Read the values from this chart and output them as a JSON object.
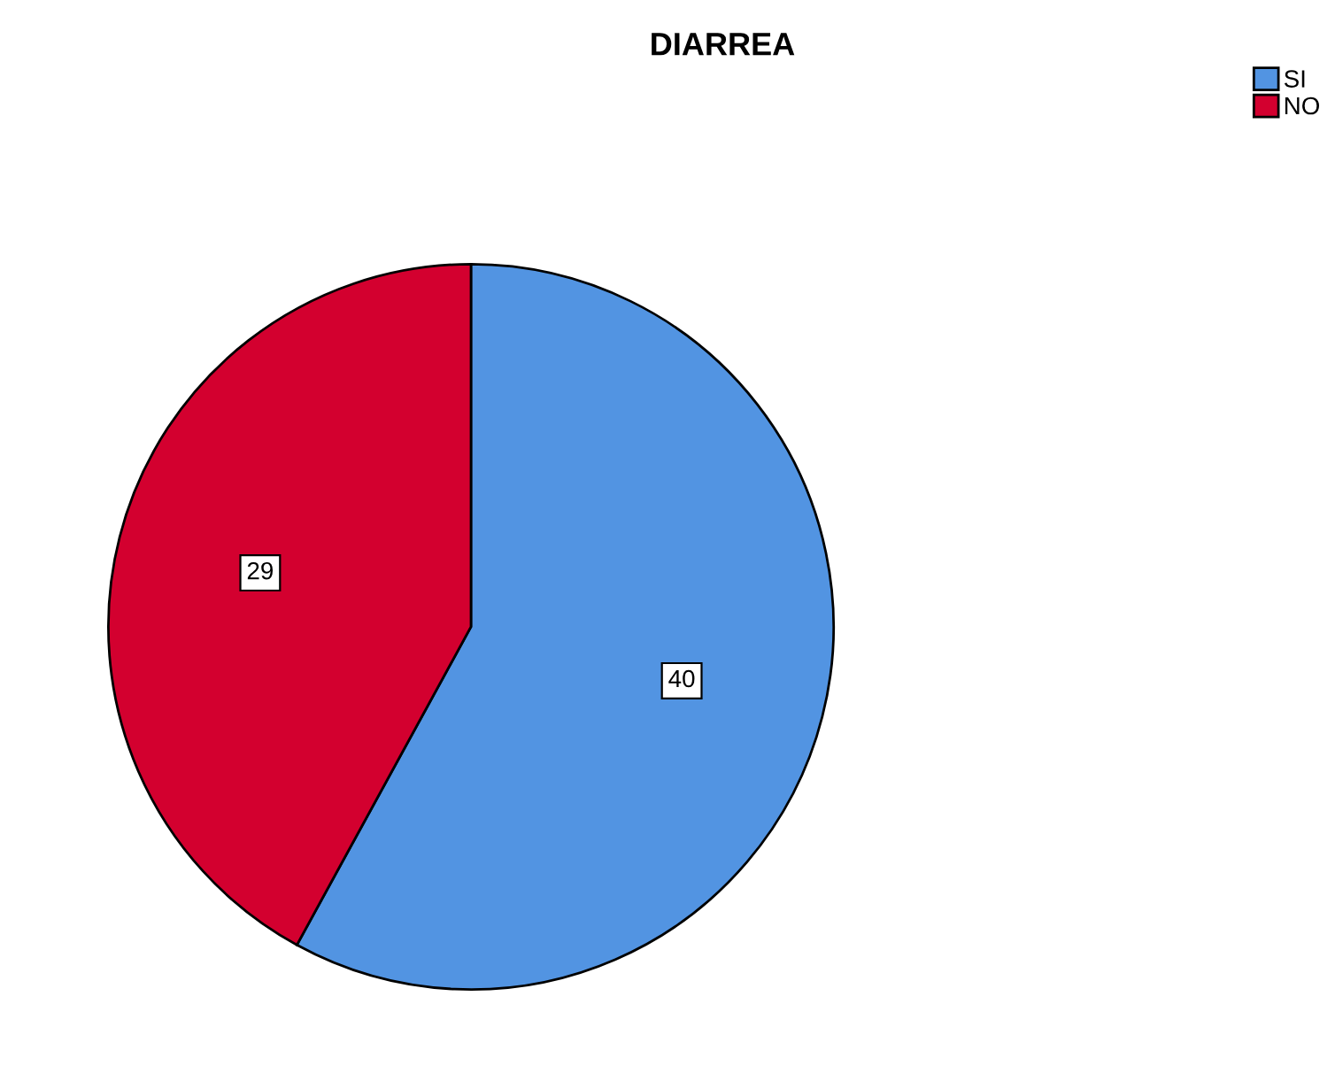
{
  "chart_data": {
    "type": "pie",
    "title": "DIARREA",
    "categories": [
      "SI",
      "NO"
    ],
    "values": [
      40,
      29
    ],
    "colors": [
      "#5294e2",
      "#d3002f"
    ],
    "data_labels": true,
    "legend": "top right"
  }
}
